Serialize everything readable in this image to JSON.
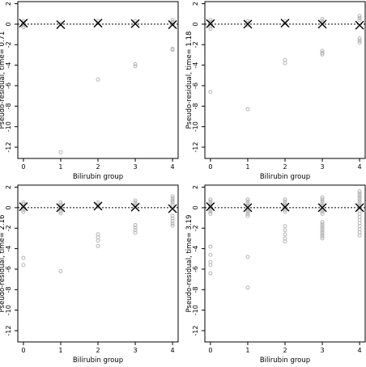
{
  "chart_data": [
    {
      "type": "scatter",
      "xlabel": "Bilirubin group",
      "ylabel": "Pseudo-residual, time= 0.71",
      "xlim": [
        -0.15,
        4.15
      ],
      "ylim": [
        -13.1,
        2.2
      ],
      "x_ticks": [
        "0",
        "1",
        "2",
        "3",
        "4"
      ],
      "y_ticks": [
        "2",
        "0",
        "-2",
        "-4",
        "-6",
        "-8",
        "-10",
        "-12"
      ],
      "reference_line": {
        "y": 0,
        "style": "dotted"
      },
      "residuals": [
        {
          "x": 0,
          "y": [
            0.3,
            0.15,
            0.05,
            -0.1,
            -0.3
          ]
        },
        {
          "x": 1,
          "y": [
            0.05,
            -12.5
          ]
        },
        {
          "x": 2,
          "y": [
            0.3,
            0.1,
            -5.4
          ]
        },
        {
          "x": 3,
          "y": [
            0.3,
            0.1,
            -3.9,
            -4.1
          ]
        },
        {
          "x": 4,
          "y": [
            0.4,
            0.2,
            0.0,
            -2.4,
            -2.5
          ]
        }
      ],
      "group_means": [
        {
          "x": 0,
          "y": 0.1
        },
        {
          "x": 1,
          "y": -0.05
        },
        {
          "x": 2,
          "y": 0.1
        },
        {
          "x": 3,
          "y": 0.05
        },
        {
          "x": 4,
          "y": -0.05
        }
      ],
      "colors": {
        "residual": "#b5b5b5",
        "mean": "#000000"
      }
    },
    {
      "type": "scatter",
      "xlabel": "Bilirubin group",
      "ylabel": "Pseudo-residual, time= 1.18",
      "xlim": [
        -0.15,
        4.15
      ],
      "ylim": [
        -13.1,
        2.2
      ],
      "x_ticks": [
        "0",
        "1",
        "2",
        "3",
        "4"
      ],
      "y_ticks": [
        "2",
        "0",
        "-2",
        "-4",
        "-6",
        "-8",
        "-10",
        "-12"
      ],
      "reference_line": {
        "y": 0,
        "style": "dotted"
      },
      "residuals": [
        {
          "x": 0,
          "y": [
            0.4,
            0.2,
            0.0,
            -0.2,
            -0.45,
            -6.6
          ]
        },
        {
          "x": 1,
          "y": [
            0.3,
            0.1,
            -0.1,
            -8.3
          ]
        },
        {
          "x": 2,
          "y": [
            0.3,
            0.1,
            -3.5,
            -3.8
          ]
        },
        {
          "x": 3,
          "y": [
            0.5,
            0.3,
            0.1,
            -2.6,
            -2.8,
            -2.95
          ]
        },
        {
          "x": 4,
          "y": [
            0.8,
            0.6,
            0.4,
            -1.4,
            -1.6,
            -1.8
          ]
        }
      ],
      "group_means": [
        {
          "x": 0,
          "y": 0.05
        },
        {
          "x": 1,
          "y": 0.0
        },
        {
          "x": 2,
          "y": 0.1
        },
        {
          "x": 3,
          "y": 0.0
        },
        {
          "x": 4,
          "y": -0.1
        }
      ],
      "colors": {
        "residual": "#b5b5b5",
        "mean": "#000000"
      }
    },
    {
      "type": "scatter",
      "xlabel": "Bilirubin group",
      "ylabel": "Pseudo-residual, time= 2.16",
      "xlim": [
        -0.15,
        4.15
      ],
      "ylim": [
        -13.1,
        2.2
      ],
      "x_ticks": [
        "0",
        "1",
        "2",
        "3",
        "4"
      ],
      "y_ticks": [
        "2",
        "0",
        "-2",
        "-4",
        "-6",
        "-8",
        "-10",
        "-12"
      ],
      "reference_line": {
        "y": 0,
        "style": "dotted"
      },
      "residuals": [
        {
          "x": 0,
          "y": [
            0.5,
            0.35,
            0.2,
            0.0,
            -0.2,
            -0.4,
            -4.9,
            -5.6
          ]
        },
        {
          "x": 1,
          "y": [
            0.5,
            0.3,
            0.1,
            -0.1,
            -0.35,
            -0.55,
            -6.2
          ]
        },
        {
          "x": 2,
          "y": [
            0.5,
            0.3,
            0.1,
            -2.6,
            -2.9,
            -3.2,
            -3.75
          ]
        },
        {
          "x": 3,
          "y": [
            0.7,
            0.5,
            0.3,
            0.1,
            -1.7,
            -1.95,
            -2.2,
            -2.45
          ]
        },
        {
          "x": 4,
          "y": [
            1.1,
            0.9,
            0.7,
            0.5,
            0.3,
            -0.8,
            -1.05,
            -1.3,
            -1.55,
            -1.75
          ]
        }
      ],
      "group_means": [
        {
          "x": 0,
          "y": 0.1
        },
        {
          "x": 1,
          "y": 0.0
        },
        {
          "x": 2,
          "y": 0.15
        },
        {
          "x": 3,
          "y": 0.05
        },
        {
          "x": 4,
          "y": -0.1
        }
      ],
      "colors": {
        "residual": "#b5b5b5",
        "mean": "#000000"
      }
    },
    {
      "type": "scatter",
      "xlabel": "Bilirubin group",
      "ylabel": "Pseudo-residual, time= 3.19",
      "xlim": [
        -0.15,
        4.15
      ],
      "ylim": [
        -13.1,
        2.2
      ],
      "x_ticks": [
        "0",
        "1",
        "2",
        "3",
        "4"
      ],
      "y_ticks": [
        "2",
        "0",
        "-2",
        "-4",
        "-6",
        "-8",
        "-10",
        "-12"
      ],
      "reference_line": {
        "y": 0,
        "style": "dotted"
      },
      "residuals": [
        {
          "x": 0,
          "y": [
            0.8,
            0.6,
            0.4,
            0.2,
            0.0,
            -0.2,
            -0.4,
            -0.6,
            -3.8,
            -4.6,
            -5.3,
            -5.6,
            -6.4
          ]
        },
        {
          "x": 1,
          "y": [
            0.8,
            0.6,
            0.4,
            0.2,
            0.0,
            -0.2,
            -0.4,
            -0.6,
            -0.8,
            -4.8,
            -7.8
          ]
        },
        {
          "x": 2,
          "y": [
            0.8,
            0.6,
            0.4,
            0.2,
            0.0,
            -0.2,
            -0.4,
            -1.8,
            -2.2,
            -2.6,
            -3.0,
            -3.3
          ]
        },
        {
          "x": 3,
          "y": [
            1.0,
            0.8,
            0.6,
            0.4,
            0.2,
            0.0,
            -0.2,
            -0.4,
            -0.6,
            -1.4,
            -1.6,
            -1.8,
            -2.0,
            -2.2,
            -2.4,
            -2.6,
            -2.8,
            -3.0
          ]
        },
        {
          "x": 4,
          "y": [
            1.6,
            1.4,
            1.2,
            1.0,
            0.8,
            0.6,
            0.4,
            0.2,
            0.0,
            -0.3,
            -0.6,
            -0.9,
            -1.2,
            -1.5,
            -1.8,
            -2.1,
            -2.4,
            -2.7
          ]
        }
      ],
      "group_means": [
        {
          "x": 0,
          "y": 0.1
        },
        {
          "x": 1,
          "y": 0.0
        },
        {
          "x": 2,
          "y": 0.05
        },
        {
          "x": 3,
          "y": 0.0
        },
        {
          "x": 4,
          "y": 0.0
        }
      ],
      "colors": {
        "residual": "#b5b5b5",
        "mean": "#000000"
      }
    }
  ]
}
